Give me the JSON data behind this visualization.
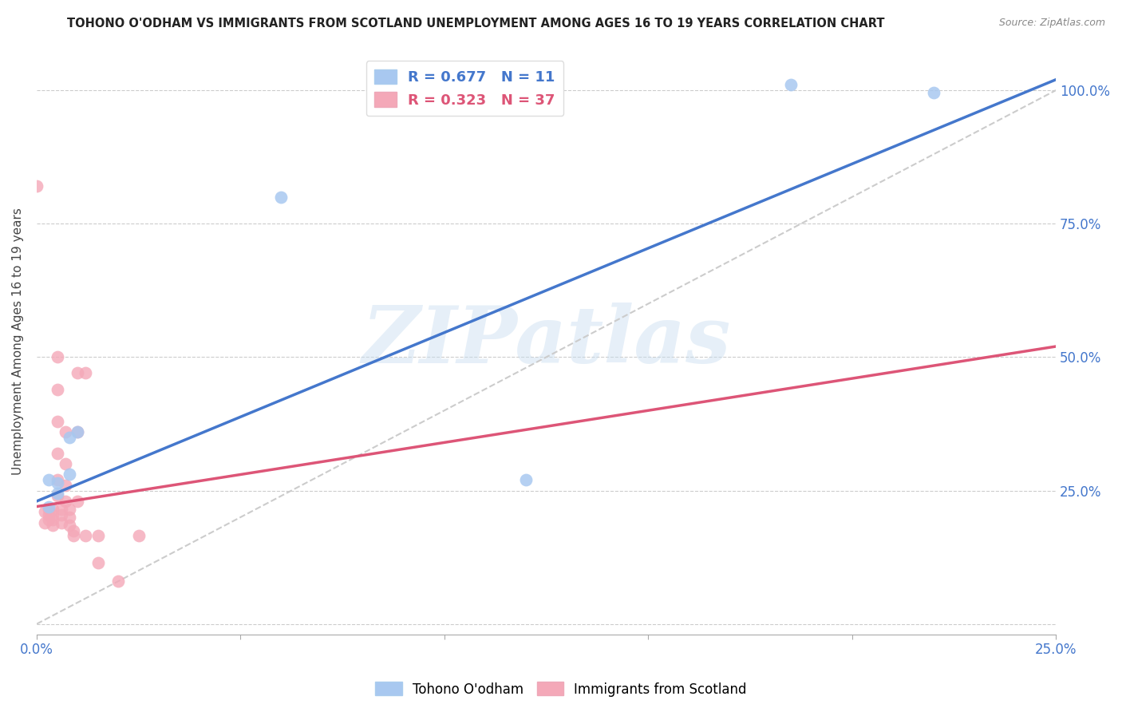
{
  "title": "TOHONO O'ODHAM VS IMMIGRANTS FROM SCOTLAND UNEMPLOYMENT AMONG AGES 16 TO 19 YEARS CORRELATION CHART",
  "source": "Source: ZipAtlas.com",
  "ylabel": "Unemployment Among Ages 16 to 19 years",
  "xlim": [
    0.0,
    0.25
  ],
  "ylim": [
    -0.02,
    1.08
  ],
  "xticks": [
    0.0,
    0.05,
    0.1,
    0.15,
    0.2,
    0.25
  ],
  "xticklabels": [
    "0.0%",
    "",
    "",
    "",
    "",
    "25.0%"
  ],
  "yticks": [
    0.0,
    0.25,
    0.5,
    0.75,
    1.0
  ],
  "yticklabels": [
    "",
    "25.0%",
    "50.0%",
    "75.0%",
    "100.0%"
  ],
  "legend_blue_r": "0.677",
  "legend_blue_n": "11",
  "legend_pink_r": "0.323",
  "legend_pink_n": "37",
  "blue_color": "#a8c8f0",
  "pink_color": "#f4a8b8",
  "blue_line_color": "#4477cc",
  "pink_line_color": "#dd5577",
  "watermark": "ZIPatlas",
  "blue_scatter_x": [
    0.185,
    0.06,
    0.005,
    0.005,
    0.01,
    0.008,
    0.008,
    0.003,
    0.003,
    0.22,
    0.12
  ],
  "blue_scatter_y": [
    1.01,
    0.8,
    0.265,
    0.245,
    0.36,
    0.35,
    0.28,
    0.27,
    0.22,
    0.995,
    0.27
  ],
  "pink_scatter_x": [
    0.0,
    0.002,
    0.002,
    0.003,
    0.003,
    0.003,
    0.004,
    0.004,
    0.004,
    0.004,
    0.005,
    0.005,
    0.005,
    0.005,
    0.005,
    0.005,
    0.006,
    0.006,
    0.006,
    0.007,
    0.007,
    0.007,
    0.007,
    0.008,
    0.008,
    0.008,
    0.009,
    0.009,
    0.01,
    0.01,
    0.01,
    0.012,
    0.012,
    0.015,
    0.015,
    0.02,
    0.025
  ],
  "pink_scatter_y": [
    0.82,
    0.21,
    0.19,
    0.215,
    0.205,
    0.195,
    0.215,
    0.205,
    0.195,
    0.185,
    0.5,
    0.44,
    0.38,
    0.32,
    0.27,
    0.24,
    0.215,
    0.205,
    0.19,
    0.36,
    0.3,
    0.26,
    0.23,
    0.215,
    0.2,
    0.185,
    0.175,
    0.165,
    0.47,
    0.36,
    0.23,
    0.47,
    0.165,
    0.165,
    0.115,
    0.08,
    0.165
  ],
  "blue_line_x0": 0.0,
  "blue_line_x1": 0.25,
  "blue_line_y0": 0.23,
  "blue_line_y1": 1.02,
  "pink_line_x0": 0.0,
  "pink_line_x1": 0.25,
  "pink_line_y0": 0.22,
  "pink_line_y1": 0.52,
  "ref_line_x0": 0.0,
  "ref_line_x1": 0.25,
  "ref_line_y0": 0.0,
  "ref_line_y1": 1.0
}
